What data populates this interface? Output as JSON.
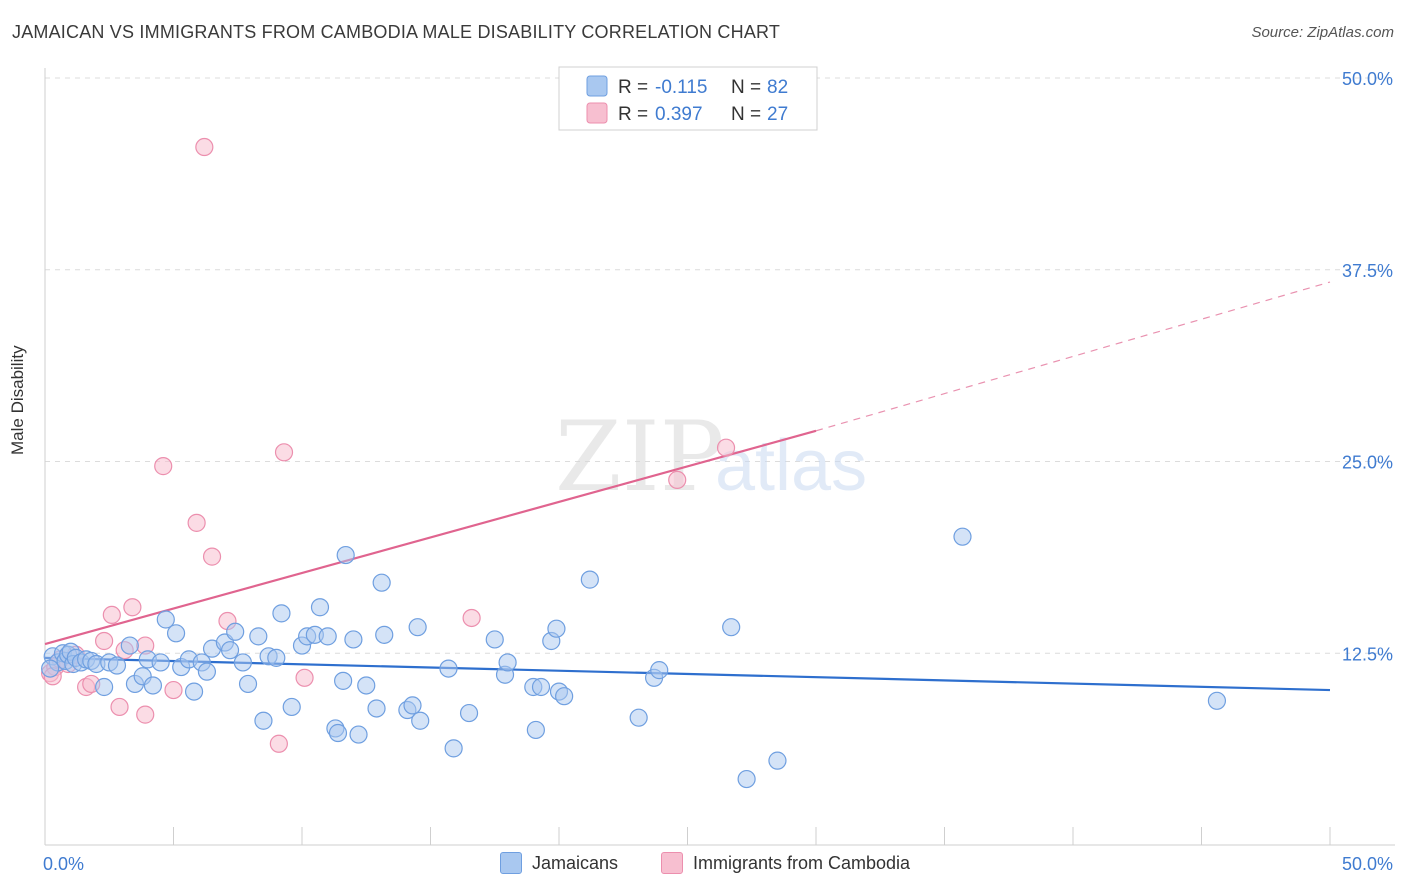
{
  "title": "JAMAICAN VS IMMIGRANTS FROM CAMBODIA MALE DISABILITY CORRELATION CHART",
  "source": "Source: ZipAtlas.com",
  "watermark": {
    "zip": "ZIP",
    "atlas": "atlas"
  },
  "colors": {
    "blue_fill": "#a9c8f0",
    "blue_stroke": "#6f9fe0",
    "blue_line": "#2e6fce",
    "pink_fill": "#f7bfd0",
    "pink_stroke": "#ec8fae",
    "pink_line": "#e0648f",
    "tick_label": "#3f7bd0",
    "grid": "#dcdcdc"
  },
  "legend_top": [
    {
      "r_label": "R =",
      "r_value": "-0.115",
      "n_label": "N =",
      "n_value": "82"
    },
    {
      "r_label": "R =",
      "r_value": "0.397",
      "n_label": "N =",
      "n_value": "27"
    }
  ],
  "legend_bottom": [
    "Jamaicans",
    "Immigrants from Cambodia"
  ],
  "chart_data": {
    "type": "scatter",
    "title": "JAMAICAN VS IMMIGRANTS FROM CAMBODIA MALE DISABILITY CORRELATION CHART",
    "xlabel": "",
    "ylabel": "Male Disability",
    "xlim": [
      0,
      50
    ],
    "ylim": [
      0,
      50
    ],
    "x_tick_labels": [
      "0.0%",
      "50.0%"
    ],
    "y_tick_labels": [
      "12.5%",
      "25.0%",
      "37.5%",
      "50.0%"
    ],
    "y_ticks": [
      12.5,
      25.0,
      37.5,
      50.0
    ],
    "grid": true,
    "legend_position": "top-center",
    "series": [
      {
        "name": "Jamaicans",
        "color": "#a9c8f0",
        "r": -0.115,
        "n": 82,
        "trend": {
          "x0": 0,
          "y0": 12.2,
          "x1": 50,
          "y1": 10.1
        },
        "points": [
          [
            0.3,
            12.3
          ],
          [
            0.5,
            11.9
          ],
          [
            0.7,
            12.5
          ],
          [
            0.8,
            12.0
          ],
          [
            0.9,
            12.4
          ],
          [
            1.0,
            12.6
          ],
          [
            1.1,
            11.8
          ],
          [
            1.2,
            12.2
          ],
          [
            1.4,
            11.9
          ],
          [
            1.6,
            12.1
          ],
          [
            1.8,
            12.0
          ],
          [
            2.0,
            11.8
          ],
          [
            2.3,
            10.3
          ],
          [
            2.5,
            11.9
          ],
          [
            2.8,
            11.7
          ],
          [
            3.3,
            13.0
          ],
          [
            3.5,
            10.5
          ],
          [
            3.8,
            11.0
          ],
          [
            4.0,
            12.1
          ],
          [
            4.2,
            10.4
          ],
          [
            4.5,
            11.9
          ],
          [
            4.7,
            14.7
          ],
          [
            5.1,
            13.8
          ],
          [
            5.3,
            11.6
          ],
          [
            5.6,
            12.1
          ],
          [
            5.8,
            10.0
          ],
          [
            6.1,
            11.9
          ],
          [
            6.3,
            11.3
          ],
          [
            6.5,
            12.8
          ],
          [
            7.0,
            13.2
          ],
          [
            7.2,
            12.7
          ],
          [
            7.4,
            13.9
          ],
          [
            7.7,
            11.9
          ],
          [
            7.9,
            10.5
          ],
          [
            8.3,
            13.6
          ],
          [
            8.5,
            8.1
          ],
          [
            8.7,
            12.3
          ],
          [
            9.0,
            12.2
          ],
          [
            9.2,
            15.1
          ],
          [
            9.6,
            9.0
          ],
          [
            10.0,
            13.0
          ],
          [
            10.2,
            13.6
          ],
          [
            10.5,
            13.7
          ],
          [
            10.7,
            15.5
          ],
          [
            11.0,
            13.6
          ],
          [
            11.3,
            7.6
          ],
          [
            11.4,
            7.3
          ],
          [
            11.6,
            10.7
          ],
          [
            12.0,
            13.4
          ],
          [
            11.7,
            18.9
          ],
          [
            12.2,
            7.2
          ],
          [
            12.5,
            10.4
          ],
          [
            12.9,
            8.9
          ],
          [
            13.1,
            17.1
          ],
          [
            13.2,
            13.7
          ],
          [
            14.1,
            8.8
          ],
          [
            14.3,
            9.1
          ],
          [
            14.5,
            14.2
          ],
          [
            14.6,
            8.1
          ],
          [
            15.7,
            11.5
          ],
          [
            15.9,
            6.3
          ],
          [
            16.5,
            8.6
          ],
          [
            17.5,
            13.4
          ],
          [
            17.9,
            11.1
          ],
          [
            18.0,
            11.9
          ],
          [
            19.1,
            7.5
          ],
          [
            19.0,
            10.3
          ],
          [
            19.3,
            10.3
          ],
          [
            19.7,
            13.3
          ],
          [
            19.9,
            14.1
          ],
          [
            20.0,
            10.0
          ],
          [
            20.2,
            9.7
          ],
          [
            21.2,
            17.3
          ],
          [
            23.1,
            8.3
          ],
          [
            23.7,
            10.9
          ],
          [
            23.9,
            11.4
          ],
          [
            26.7,
            14.2
          ],
          [
            27.3,
            4.3
          ],
          [
            28.5,
            5.5
          ],
          [
            35.7,
            20.1
          ],
          [
            45.6,
            9.4
          ],
          [
            0.2,
            11.5
          ]
        ]
      },
      {
        "name": "Immigrants from Cambodia",
        "color": "#f7bfd0",
        "r": 0.397,
        "n": 27,
        "trend_solid": {
          "x0": 0,
          "y0": 13.1,
          "x1": 30,
          "y1": 27.0
        },
        "trend_dashed": {
          "x0": 30,
          "y0": 27.0,
          "x1": 50,
          "y1": 36.7
        },
        "points": [
          [
            0.2,
            11.2
          ],
          [
            0.4,
            11.6
          ],
          [
            0.6,
            12.1
          ],
          [
            0.9,
            11.8
          ],
          [
            1.2,
            12.4
          ],
          [
            1.6,
            10.3
          ],
          [
            1.8,
            10.5
          ],
          [
            2.3,
            13.3
          ],
          [
            2.6,
            15.0
          ],
          [
            2.9,
            9.0
          ],
          [
            3.1,
            12.7
          ],
          [
            3.4,
            15.5
          ],
          [
            3.9,
            13.0
          ],
          [
            3.9,
            8.5
          ],
          [
            4.6,
            24.7
          ],
          [
            5.0,
            10.1
          ],
          [
            5.9,
            21.0
          ],
          [
            6.2,
            45.5
          ],
          [
            6.5,
            18.8
          ],
          [
            7.1,
            14.6
          ],
          [
            9.1,
            6.6
          ],
          [
            9.3,
            25.6
          ],
          [
            10.1,
            10.9
          ],
          [
            16.6,
            14.8
          ],
          [
            24.6,
            23.8
          ],
          [
            26.5,
            25.9
          ],
          [
            0.3,
            11.0
          ]
        ]
      }
    ]
  }
}
